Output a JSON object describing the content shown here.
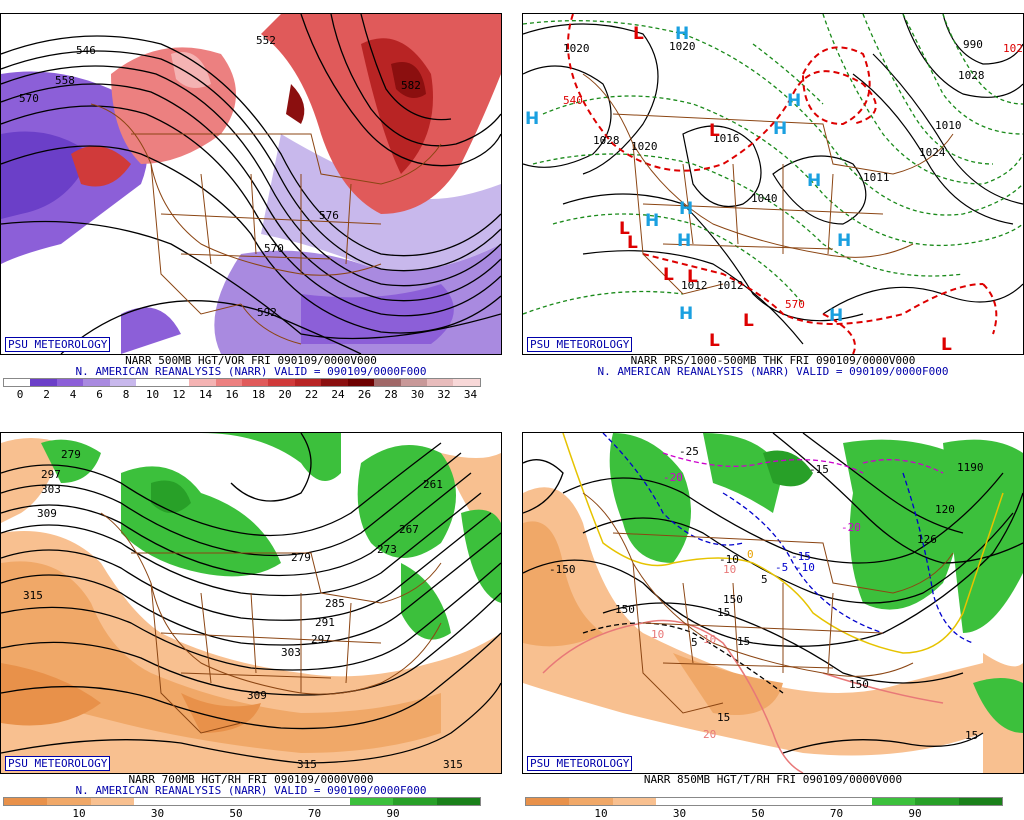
{
  "credit": "PSU METEOROLOGY",
  "panels": [
    {
      "line1": "NARR 500MB HGT/VOR FRI 090109/0000V000",
      "line2": "N. AMERICAN REANALYSIS (NARR) VALID = 090109/0000F000",
      "colorbar": [
        "#ffffff",
        "#6b3fc8",
        "#8c5fd8",
        "#a98ae0",
        "#c8b8ec",
        "#ffffff",
        "#ffffff",
        "#f4b3b3",
        "#ec8080",
        "#e05a5a",
        "#d03a3a",
        "#b82424",
        "#8b0f0f",
        "#6e0000",
        "#a06868",
        "#c89898",
        "#e8bcbc",
        "#f8d8d8"
      ],
      "ticks": [
        "0",
        "2",
        "4",
        "6",
        "8",
        "10",
        "12",
        "14",
        "16",
        "18",
        "20",
        "22",
        "24",
        "26",
        "28",
        "30",
        "32",
        "34"
      ],
      "contour_labels": [
        "570",
        "558",
        "552",
        "570",
        "576",
        "582",
        "592",
        "546"
      ]
    },
    {
      "line1": "NARR PRS/1000-500MB THK FRI 090109/0000V000",
      "line2": "N. AMERICAN REANALYSIS (NARR) VALID = 090109/0000F000",
      "contour_labels": [
        "540",
        "1020",
        "1020",
        "1028",
        "1020",
        "1016",
        "1012",
        "1012",
        "1011",
        "1024",
        "1040",
        "570",
        "1010",
        "1024",
        "990",
        "1028"
      ],
      "highs": [
        "H",
        "H",
        "H",
        "H",
        "H",
        "H",
        "H",
        "H",
        "H",
        "H",
        "H"
      ],
      "lows": [
        "L",
        "L",
        "L",
        "L",
        "L",
        "L",
        "L",
        "L",
        "L"
      ]
    },
    {
      "line1": "NARR 700MB HGT/RH FRI 090109/0000V000",
      "line2": "N. AMERICAN REANALYSIS (NARR) VALID = 090109/0000F000",
      "colorbar": [
        "#e8914a",
        "#f0a868",
        "#f8c090",
        "#ffffff",
        "#ffffff",
        "#ffffff",
        "#ffffff",
        "#ffffff",
        "#3cc03c",
        "#28a028",
        "#1a801a"
      ],
      "ticks": [
        "10",
        "30",
        "50",
        "70",
        "90"
      ],
      "contour_labels": [
        "279",
        "297",
        "303",
        "309",
        "315",
        "309",
        "303",
        "297",
        "291",
        "285",
        "279",
        "273",
        "267",
        "261",
        "315",
        "315"
      ]
    },
    {
      "line1": "NARR 850MB HGT/T/RH FRI 090109/0000V000",
      "line2": "",
      "colorbar": [
        "#e8914a",
        "#f0a868",
        "#f8c090",
        "#ffffff",
        "#ffffff",
        "#ffffff",
        "#ffffff",
        "#ffffff",
        "#3cc03c",
        "#28a028",
        "#1a801a"
      ],
      "ticks": [
        "10",
        "30",
        "50",
        "70",
        "90"
      ],
      "contour_labels": [
        "-25",
        "-20",
        "-15",
        "-20",
        "-15",
        "-10",
        "-5",
        "-10",
        "0",
        "5",
        "10",
        "10",
        "15",
        "10",
        "5",
        "15",
        "15",
        "20",
        "15",
        "-150",
        "150",
        "150",
        "150",
        "1190",
        "120",
        "126"
      ]
    }
  ]
}
